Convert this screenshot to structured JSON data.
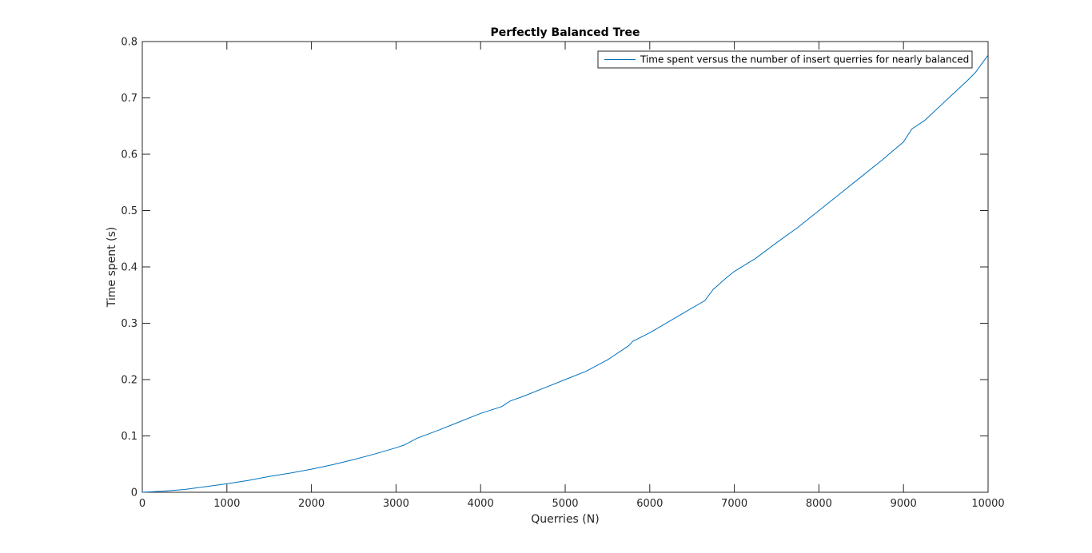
{
  "chart_data": {
    "type": "line",
    "title": "Perfectly Balanced Tree",
    "xlabel": "Querries (N)",
    "ylabel": "Time spent (s)",
    "xlim": [
      0,
      10000
    ],
    "ylim": [
      0,
      0.8
    ],
    "xticks": [
      "0",
      "1000",
      "2000",
      "3000",
      "4000",
      "5000",
      "6000",
      "7000",
      "8000",
      "9000",
      "10000"
    ],
    "yticks": [
      "0",
      "0.1",
      "0.2",
      "0.3",
      "0.4",
      "0.5",
      "0.6",
      "0.7",
      "0.8"
    ],
    "grid": false,
    "legend_position": "top-right",
    "series": [
      {
        "name": "Time spent versus the number of insert querries for nearly balanced",
        "color": "#0072bd",
        "x": [
          0,
          250,
          500,
          750,
          1000,
          1250,
          1500,
          1750,
          2000,
          2250,
          2500,
          2750,
          3000,
          3100,
          3250,
          3500,
          3750,
          4000,
          4250,
          4350,
          4500,
          4750,
          5000,
          5250,
          5500,
          5750,
          5800,
          6000,
          6250,
          6500,
          6650,
          6750,
          6900,
          7000,
          7250,
          7500,
          7750,
          8000,
          8250,
          8500,
          8750,
          9000,
          9100,
          9250,
          9500,
          9750,
          9850,
          10000
        ],
        "y": [
          0,
          0.002,
          0.005,
          0.01,
          0.015,
          0.021,
          0.028,
          0.034,
          0.041,
          0.049,
          0.058,
          0.068,
          0.079,
          0.084,
          0.096,
          0.11,
          0.125,
          0.14,
          0.152,
          0.162,
          0.17,
          0.185,
          0.2,
          0.215,
          0.235,
          0.26,
          0.268,
          0.283,
          0.305,
          0.327,
          0.34,
          0.36,
          0.38,
          0.392,
          0.415,
          0.443,
          0.47,
          0.5,
          0.53,
          0.56,
          0.59,
          0.622,
          0.645,
          0.66,
          0.695,
          0.73,
          0.745,
          0.776
        ]
      }
    ]
  }
}
